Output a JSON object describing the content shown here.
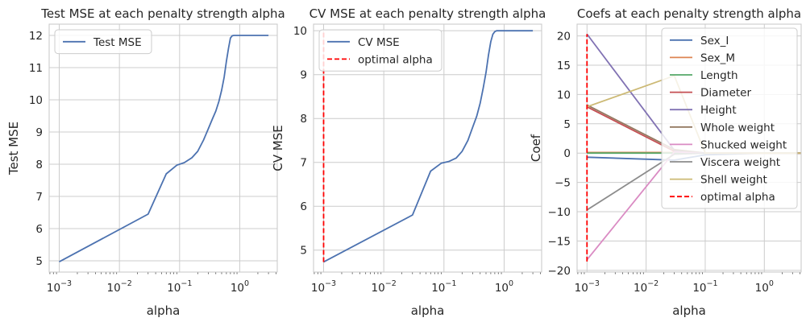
{
  "colors": {
    "blue": "#4c72b0",
    "orange": "#dd8452",
    "green": "#55a868",
    "red": "#c44e52",
    "purple": "#8172b3",
    "brown": "#937860",
    "pink": "#da8bc3",
    "gray": "#8c8c8c",
    "khaki": "#ccb974",
    "optimal": "#ff0000",
    "grid": "#cccccc",
    "axis": "#cccccc"
  },
  "chart_data": [
    {
      "type": "line",
      "title": "Test MSE at each penalty strength alpha",
      "xlabel": "alpha",
      "ylabel": "Test MSE",
      "xscale": "log",
      "xlim": [
        0.00068,
        4.2
      ],
      "ylim": [
        4.65,
        12.35
      ],
      "xticks": [
        0.001,
        0.01,
        0.1,
        1
      ],
      "xtick_labels": [
        {
          "base": "10",
          "exp": "−3"
        },
        {
          "base": "10",
          "exp": "−2"
        },
        {
          "base": "10",
          "exp": "−1"
        },
        {
          "base": "10",
          "exp": "0"
        }
      ],
      "yticks": [
        5,
        6,
        7,
        8,
        9,
        10,
        11,
        12
      ],
      "yticks_labels": [
        "5",
        "6",
        "7",
        "8",
        "9",
        "10",
        "11",
        "12"
      ],
      "grid": true,
      "legend_position": "upper-left",
      "series": [
        {
          "name": "Test MSE",
          "color": "blue",
          "style": "solid",
          "x": [
            0.001,
            0.03,
            0.06,
            0.09,
            0.12,
            0.16,
            0.2,
            0.25,
            0.3,
            0.35,
            0.4,
            0.45,
            0.5,
            0.55,
            0.6,
            0.65,
            0.7,
            0.75,
            0.8,
            0.9,
            1.0,
            2.0,
            3.0
          ],
          "y": [
            4.97,
            6.45,
            7.7,
            7.97,
            8.05,
            8.2,
            8.4,
            8.75,
            9.1,
            9.4,
            9.65,
            9.95,
            10.3,
            10.7,
            11.2,
            11.6,
            11.92,
            11.99,
            12.0,
            12.0,
            12.0,
            12.0,
            12.0
          ]
        }
      ]
    },
    {
      "type": "line",
      "title": "CV MSE at each penalty strength alpha",
      "xlabel": "alpha",
      "ylabel": "CV MSE",
      "xscale": "log",
      "xlim": [
        0.00068,
        4.2
      ],
      "ylim": [
        4.5,
        10.15
      ],
      "xticks": [
        0.001,
        0.01,
        0.1,
        1
      ],
      "xtick_labels": [
        {
          "base": "10",
          "exp": "−3"
        },
        {
          "base": "10",
          "exp": "−2"
        },
        {
          "base": "10",
          "exp": "−1"
        },
        {
          "base": "10",
          "exp": "0"
        }
      ],
      "yticks": [
        5,
        6,
        7,
        8,
        9,
        10
      ],
      "yticks_labels": [
        "5",
        "6",
        "7",
        "8",
        "9",
        "10"
      ],
      "grid": true,
      "legend_position": "upper-left",
      "series": [
        {
          "name": "CV MSE",
          "color": "blue",
          "style": "solid",
          "x": [
            0.001,
            0.03,
            0.06,
            0.09,
            0.12,
            0.16,
            0.2,
            0.25,
            0.3,
            0.35,
            0.4,
            0.45,
            0.5,
            0.55,
            0.6,
            0.65,
            0.7,
            0.75,
            0.8,
            0.9,
            1.0,
            2.0,
            3.0
          ],
          "y": [
            4.73,
            5.8,
            6.8,
            6.98,
            7.02,
            7.1,
            7.25,
            7.5,
            7.8,
            8.05,
            8.35,
            8.7,
            9.05,
            9.45,
            9.75,
            9.92,
            9.98,
            10.0,
            10.0,
            10.0,
            10.0,
            10.0,
            10.0
          ]
        },
        {
          "name": "optimal alpha",
          "color": "optimal",
          "style": "dashed",
          "x": [
            0.001,
            0.001
          ],
          "y": [
            4.73,
            10.0
          ]
        }
      ]
    },
    {
      "type": "line",
      "title": "Coefs at each penalty strength alpha",
      "xlabel": "alpha",
      "ylabel": "Coef",
      "xscale": "log",
      "xlim": [
        0.00068,
        4.2
      ],
      "ylim": [
        -20.3,
        22.0
      ],
      "xticks": [
        0.001,
        0.01,
        0.1,
        1
      ],
      "xtick_labels": [
        {
          "base": "10",
          "exp": "−3"
        },
        {
          "base": "10",
          "exp": "−2"
        },
        {
          "base": "10",
          "exp": "−1"
        },
        {
          "base": "10",
          "exp": "0"
        }
      ],
      "yticks": [
        -20,
        -15,
        -10,
        -5,
        0,
        5,
        10,
        15,
        20
      ],
      "yticks_labels": [
        "−20",
        "−15",
        "−10",
        "−5",
        "0",
        "5",
        "10",
        "15",
        "20"
      ],
      "grid": true,
      "legend_position": "upper-right",
      "series": [
        {
          "name": "Sex_I",
          "color": "blue",
          "style": "solid",
          "x": [
            0.001,
            0.03,
            0.1,
            1,
            4.2
          ],
          "y": [
            -0.7,
            -1.2,
            -0.3,
            0,
            0
          ]
        },
        {
          "name": "Sex_M",
          "color": "orange",
          "style": "solid",
          "x": [
            0.001,
            0.03,
            0.1,
            1,
            4.2
          ],
          "y": [
            0.1,
            0.1,
            0,
            0,
            0
          ]
        },
        {
          "name": "Length",
          "color": "green",
          "style": "solid",
          "x": [
            0.001,
            0.03,
            0.1,
            1,
            4.2
          ],
          "y": [
            0.0,
            0.0,
            0,
            0,
            0
          ]
        },
        {
          "name": "Diameter",
          "color": "red",
          "style": "solid",
          "x": [
            0.001,
            0.03,
            0.1,
            1,
            4.2
          ],
          "y": [
            7.9,
            0.3,
            0,
            0,
            0
          ]
        },
        {
          "name": "Height",
          "color": "purple",
          "style": "solid",
          "x": [
            0.001,
            0.03,
            0.1,
            1,
            4.2
          ],
          "y": [
            20.3,
            0.5,
            0,
            0,
            0
          ]
        },
        {
          "name": "Whole weight",
          "color": "brown",
          "style": "solid",
          "x": [
            0.001,
            0.03,
            0.1,
            1,
            4.2
          ],
          "y": [
            8.2,
            0.6,
            0,
            0,
            0
          ]
        },
        {
          "name": "Shucked weight",
          "color": "pink",
          "style": "solid",
          "x": [
            0.001,
            0.03,
            0.1,
            1,
            4.2
          ],
          "y": [
            -18.2,
            0.2,
            0,
            0,
            0
          ]
        },
        {
          "name": "Viscera weight",
          "color": "gray",
          "style": "solid",
          "x": [
            0.001,
            0.03,
            0.1,
            1,
            4.2
          ],
          "y": [
            -9.7,
            -0.2,
            0,
            0,
            0
          ]
        },
        {
          "name": "Shell weight",
          "color": "khaki",
          "style": "solid",
          "x": [
            0.001,
            0.03,
            0.1,
            1,
            4.2
          ],
          "y": [
            7.9,
            13.2,
            0,
            0,
            0
          ]
        },
        {
          "name": "optimal alpha",
          "color": "optimal",
          "style": "dashed",
          "x": [
            0.001,
            0.001
          ],
          "y": [
            -18.5,
            20.3
          ]
        }
      ]
    }
  ]
}
